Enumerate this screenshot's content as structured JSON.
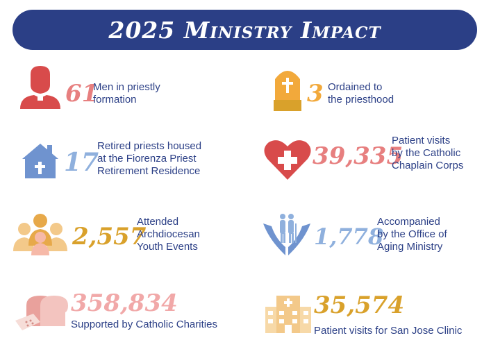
{
  "title": "2025 Ministry Impact",
  "colors": {
    "banner": "#2b3f86",
    "text": "#2b3f86",
    "red": "#d84b4b",
    "blue": "#6f93cf",
    "gold": "#d9a12b",
    "pink": "#e77f7f"
  },
  "stats": [
    {
      "value": "61",
      "lines": [
        "Men in priestly",
        "formation"
      ],
      "icon": "priest-icon"
    },
    {
      "value": "3",
      "lines": [
        "Ordained to",
        "the priesthood"
      ],
      "icon": "mitre-icon"
    },
    {
      "value": "17",
      "lines": [
        "Retired priests housed",
        "at the Fiorenza Priest",
        "Retirement Residence"
      ],
      "icon": "house-icon"
    },
    {
      "value": "39,335",
      "lines": [
        "Patient visits",
        "by the Catholic",
        "Chaplain Corps"
      ],
      "icon": "heart-cross-icon"
    },
    {
      "value": "2,557",
      "lines": [
        "Attended",
        "Archdiocesan",
        "Youth Events"
      ],
      "icon": "youth-group-icon"
    },
    {
      "value": "1,778",
      "lines": [
        "Accompanied",
        "by the Office of",
        "Aging Ministry"
      ],
      "icon": "hands-elderly-icon"
    },
    {
      "value": "358,834",
      "lines": [
        "Supported by Catholic Charities"
      ],
      "icon": "bread-icon"
    },
    {
      "value": "35,574",
      "lines": [
        "Patient visits for San Jose Clinic"
      ],
      "icon": "clinic-icon"
    }
  ]
}
